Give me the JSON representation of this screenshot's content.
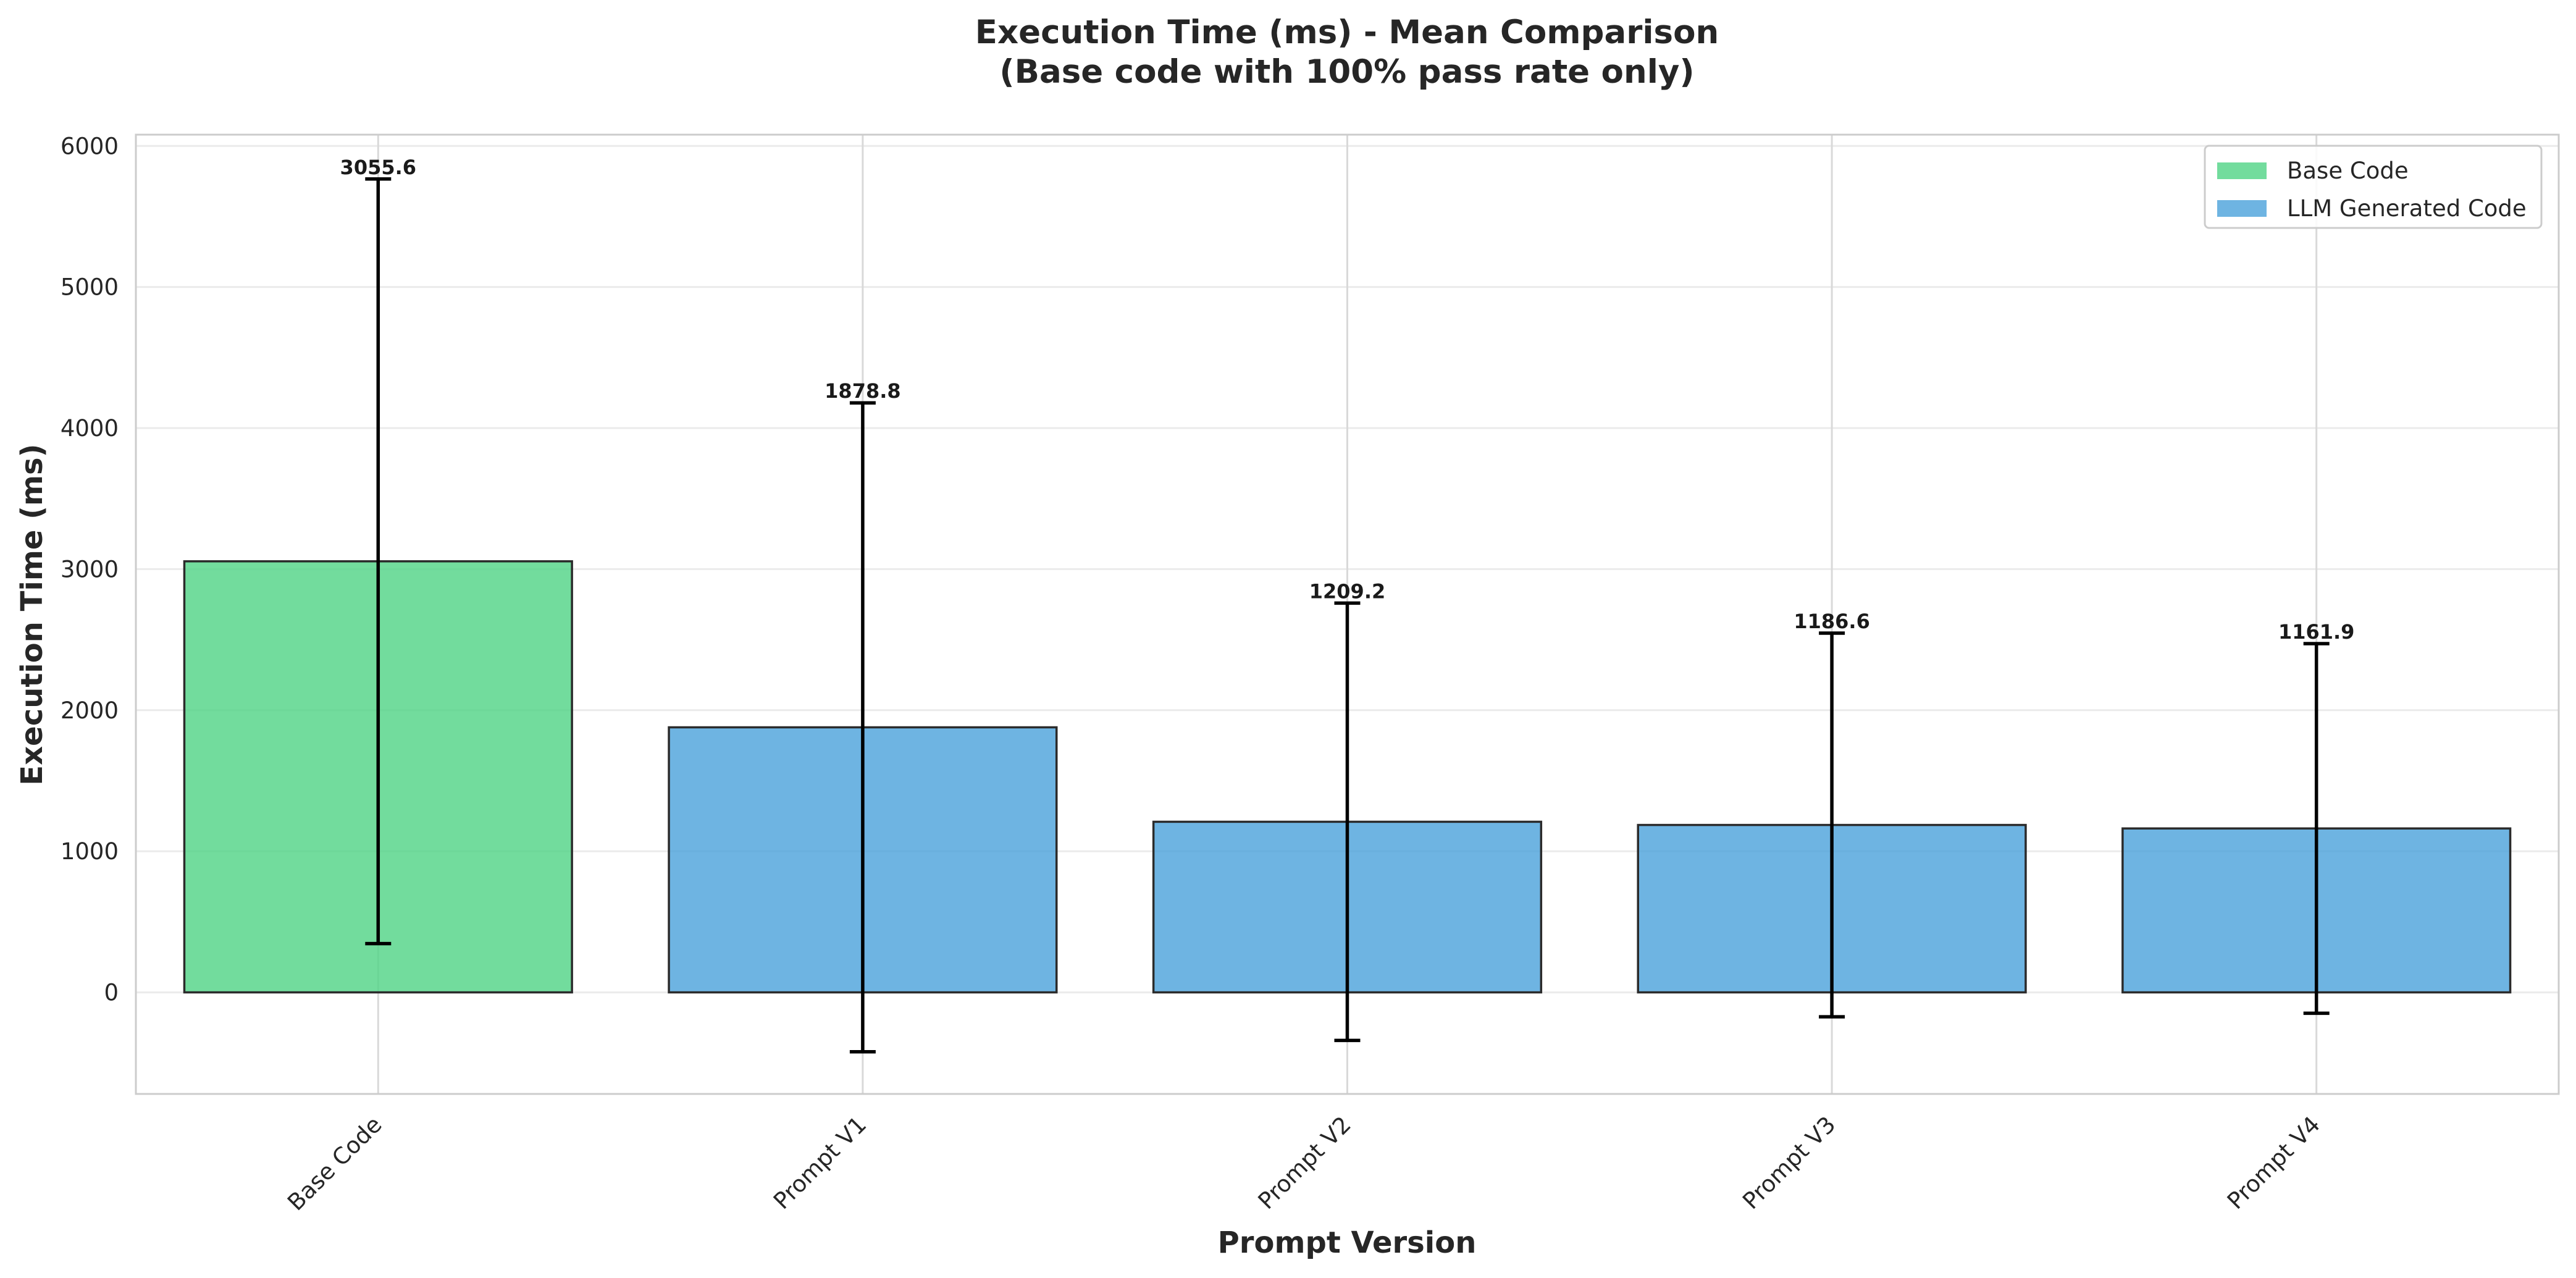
{
  "chart_data": {
    "type": "bar",
    "title": "Execution Time (ms) - Mean Comparison",
    "subtitle": "(Base code with 100% pass rate only)",
    "xlabel": "Prompt Version",
    "ylabel": "Execution Time (ms)",
    "categories": [
      "Base Code",
      "Prompt V1",
      "Prompt V2",
      "Prompt V3",
      "Prompt V4"
    ],
    "values": [
      3055.6,
      1878.8,
      1209.2,
      1186.6,
      1161.9
    ],
    "errors": [
      2710,
      2300,
      1550,
      1360,
      1310
    ],
    "value_labels": [
      "3055.6",
      "1878.8",
      "1209.2",
      "1186.6",
      "1161.9"
    ],
    "groups": [
      "Base Code",
      "LLM Generated Code",
      "LLM Generated Code",
      "LLM Generated Code",
      "LLM Generated Code"
    ],
    "ylim": [
      -720,
      6080
    ],
    "yticks": [
      0,
      1000,
      2000,
      3000,
      4000,
      5000,
      6000
    ],
    "ytick_labels": [
      "0",
      "1000",
      "2000",
      "3000",
      "4000",
      "5000",
      "6000"
    ],
    "grid": true,
    "legend": {
      "placement": "top-right",
      "entries": [
        {
          "name": "Base Code",
          "color": "#4fd384"
        },
        {
          "name": "LLM Generated Code",
          "color": "#4aa1db"
        }
      ]
    },
    "colors": {
      "Base Code": "#4fd384",
      "LLM Generated Code": "#4aa1db"
    }
  }
}
